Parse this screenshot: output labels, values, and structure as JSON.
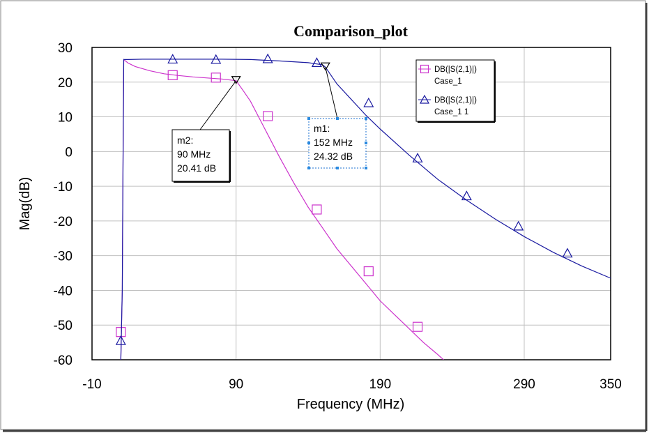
{
  "chart_data": {
    "type": "line",
    "title": "Comparison_plot",
    "xlabel": "Frequency (MHz)",
    "ylabel": "Mag(dB)",
    "xlim": [
      -10,
      350
    ],
    "ylim": [
      -60,
      30
    ],
    "x_ticks": [
      "-10",
      "90",
      "190",
      "290",
      "350"
    ],
    "y_ticks": [
      "30",
      "20",
      "10",
      "0",
      "-10",
      "-20",
      "-30",
      "-40",
      "-50",
      "-60"
    ],
    "x_tick_values": [
      -10,
      90,
      190,
      290,
      350
    ],
    "y_tick_values": [
      30,
      20,
      10,
      0,
      -10,
      -20,
      -30,
      -40,
      -50,
      -60
    ],
    "grid": true,
    "legend_position": "top-right",
    "series": [
      {
        "name": "DB(|S(2,1)|)",
        "name2": "Case_1",
        "color": "#cc33cc",
        "marker": "square",
        "x": [
          12,
          15,
          20,
          30,
          40,
          50,
          60,
          70,
          80,
          90,
          95,
          100,
          110,
          120,
          130,
          140,
          150,
          160,
          170,
          180,
          190,
          200,
          210,
          220,
          230,
          234
        ],
        "y": [
          26.5,
          25.5,
          24.5,
          23.3,
          22.4,
          21.9,
          21.5,
          21.2,
          20.9,
          20.41,
          17.5,
          14.5,
          6.5,
          -1.5,
          -9,
          -16,
          -22,
          -28,
          -33,
          -38,
          -43,
          -47,
          -51,
          -55,
          -58.5,
          -60
        ],
        "marker_x": [
          10,
          46,
          76,
          112,
          146,
          182,
          216
        ],
        "marker_y": [
          -52,
          22,
          21.3,
          10.2,
          -16.7,
          -34.5,
          -50.5
        ]
      },
      {
        "name": "DB(|S(2,1)|)",
        "name2": "Case_1 1",
        "color": "#1a1aa0",
        "marker": "triangle",
        "x": [
          12,
          15,
          25,
          40,
          60,
          80,
          100,
          120,
          140,
          150,
          152,
          160,
          170,
          180,
          190,
          210,
          230,
          250,
          270,
          290,
          310,
          330,
          350
        ],
        "y": [
          26.5,
          26.5,
          26.6,
          26.6,
          26.6,
          26.6,
          26.5,
          26.1,
          25.6,
          25,
          24.32,
          19.5,
          15,
          10.5,
          6.5,
          -1,
          -8,
          -14,
          -19.5,
          -24.5,
          -29,
          -33,
          -36.5
        ],
        "marker_x": [
          10,
          46,
          76,
          112,
          146,
          182,
          216,
          250,
          286,
          320
        ],
        "marker_y": [
          -54.5,
          26.6,
          26.5,
          26.7,
          25.6,
          14,
          -1.9,
          -12.8,
          -21.5,
          -29.3
        ]
      }
    ],
    "markers": [
      {
        "label": "m1:",
        "freq": "152 MHz",
        "value": "24.32 dB",
        "x": 152,
        "y": 24.32
      },
      {
        "label": "m2:",
        "freq": "90 MHz",
        "value": "20.41 dB",
        "x": 90,
        "y": 20.41
      }
    ]
  }
}
